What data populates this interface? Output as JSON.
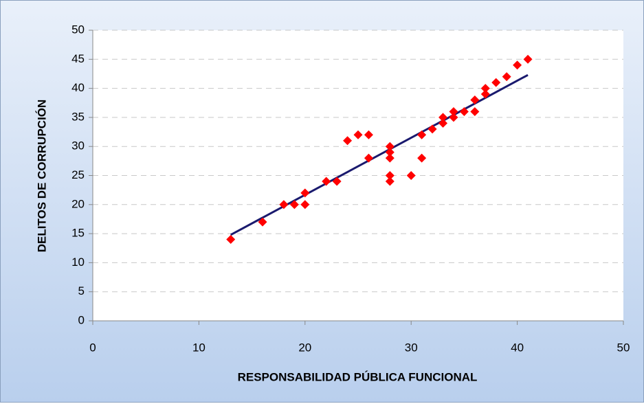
{
  "chart_data": {
    "type": "scatter",
    "xlabel": "RESPONSABILIDAD PÚBLICA FUNCIONAL",
    "ylabel": "DELITOS DE CORRUPCIÓN",
    "series": [
      {
        "color": "#ff0000",
        "x": [
          13,
          16,
          18,
          19,
          20,
          20,
          22,
          23,
          24,
          25,
          26,
          26,
          28,
          28,
          28,
          28,
          28,
          30,
          31,
          31,
          32,
          33,
          33,
          34,
          34,
          35,
          36,
          36,
          37,
          37,
          38,
          39,
          40,
          41
        ],
        "values": [
          14,
          17,
          20,
          20,
          20,
          22,
          24,
          24,
          31,
          32,
          32,
          28,
          30,
          29,
          28,
          25,
          24,
          25,
          32,
          28,
          33,
          34,
          35,
          35,
          36,
          36,
          36,
          38,
          39,
          40,
          41,
          42,
          44,
          45
        ]
      }
    ],
    "trendline": {
      "color": "#1a1a6e",
      "x": [
        13,
        41
      ],
      "values": [
        14.8,
        42.3
      ]
    },
    "xlim": [
      0,
      50
    ],
    "xticks": [
      0,
      10,
      20,
      30,
      40,
      50
    ],
    "ylim": [
      0,
      50
    ],
    "yticks": [
      0,
      5,
      10,
      15,
      20,
      25,
      30,
      35,
      40,
      45,
      50
    ],
    "grid": true
  }
}
